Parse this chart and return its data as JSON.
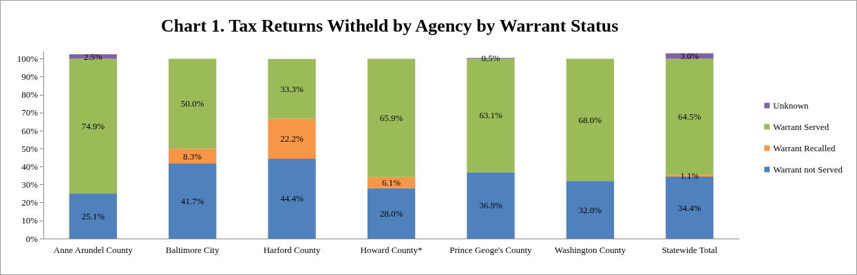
{
  "chart_data": {
    "type": "bar",
    "title": "Chart 1. Tax Returns Witheld by Agency by Warrant Status",
    "stacked": true,
    "categories": [
      "Anne Arundel County",
      "Baltimore City",
      "Harford County",
      "Howard County*",
      "Prince Geoge's County",
      "Washington County",
      "Statewide Total"
    ],
    "series": [
      {
        "name": "Warrant not Served",
        "color": "#4f81bd",
        "values": [
          25.1,
          41.7,
          44.4,
          28.0,
          36.9,
          32.0,
          34.4
        ],
        "value_labels": [
          "25.1%",
          "41.7%",
          "44.4%",
          "28.0%",
          "36.9%",
          "32.0%",
          "34.4%"
        ]
      },
      {
        "name": "Warrant Recalled",
        "color": "#f79646",
        "values": [
          null,
          8.3,
          22.2,
          6.1,
          null,
          null,
          1.1
        ],
        "value_labels": [
          null,
          "8.3%",
          "22.2%",
          "6.1%",
          null,
          null,
          "1.1%"
        ]
      },
      {
        "name": "Warrant Served",
        "color": "#9bbb59",
        "values": [
          74.9,
          50.0,
          33.3,
          65.9,
          63.1,
          68.0,
          64.5
        ],
        "value_labels": [
          "74.9%",
          "50.0%",
          "33.3%",
          "65.9%",
          "63.1%",
          "68.0%",
          "64.5%"
        ]
      },
      {
        "name": "Unknown",
        "color": "#8064a2",
        "values": [
          2.5,
          null,
          null,
          null,
          0.5,
          null,
          3.0
        ],
        "value_labels": [
          "2.5%",
          null,
          null,
          null,
          "0.5%",
          null,
          "3.0%"
        ]
      }
    ],
    "ylim": [
      0,
      104
    ],
    "yticks": [
      {
        "value": 0,
        "label": "0%"
      },
      {
        "value": 10,
        "label": "10%"
      },
      {
        "value": 20,
        "label": "20%"
      },
      {
        "value": 30,
        "label": "30%"
      },
      {
        "value": 40,
        "label": "40%"
      },
      {
        "value": 50,
        "label": "50%"
      },
      {
        "value": 60,
        "label": "60%"
      },
      {
        "value": 70,
        "label": "70%"
      },
      {
        "value": 80,
        "label": "80%"
      },
      {
        "value": 90,
        "label": "90%"
      },
      {
        "value": 100,
        "label": "100%"
      }
    ],
    "grid": false,
    "legend": "right"
  }
}
